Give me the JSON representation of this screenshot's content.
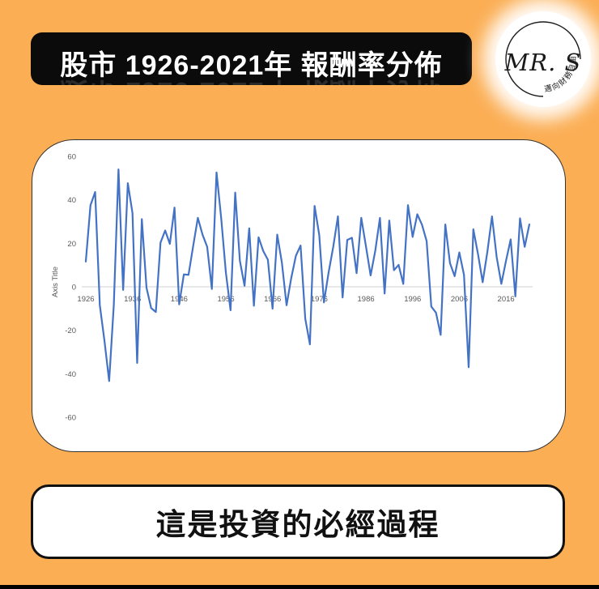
{
  "theme": {
    "background_color": "#FBAE54",
    "banner_bg": "#0B0B0B",
    "banner_text_color": "#FFFFFF",
    "card_bg": "#FFFFFF",
    "card_border_color": "#333333",
    "caption_border_color": "#111111",
    "bottom_bar_color": "#000000"
  },
  "header": {
    "title": "股市 1926-2021年 報酬率分佈"
  },
  "logo": {
    "name": "MR. S",
    "tagline": "邁向財務自由"
  },
  "caption": {
    "text": "這是投資的必經過程"
  },
  "chart_data": {
    "type": "line",
    "title": "",
    "xlabel": "",
    "ylabel": "Axis Title",
    "line_color": "#4472C4",
    "axis_label_color": "#595959",
    "gridline_color": "#D9D9D9",
    "ylim": [
      -60,
      60
    ],
    "yticks": [
      60,
      40,
      20,
      0,
      -20,
      -40,
      -60
    ],
    "xticks": [
      1926,
      1936,
      1946,
      1956,
      1966,
      1976,
      1986,
      1996,
      2006,
      2016
    ],
    "x_range": [
      1926,
      2021
    ],
    "grid": "zero-line-only",
    "legend": "none",
    "values": [
      11.62,
      37.49,
      43.61,
      -8.42,
      -24.9,
      -43.34,
      -8.19,
      53.99,
      -1.44,
      47.67,
      33.92,
      -35.03,
      31.12,
      -0.41,
      -9.78,
      -11.59,
      20.34,
      25.9,
      19.75,
      36.44,
      -8.07,
      5.71,
      5.5,
      18.79,
      31.71,
      24.02,
      18.37,
      -0.99,
      52.62,
      31.56,
      6.56,
      -10.78,
      43.36,
      11.96,
      0.47,
      26.89,
      -8.73,
      22.8,
      16.48,
      12.45,
      -10.06,
      23.98,
      11.06,
      -8.5,
      4.01,
      14.31,
      18.98,
      -14.66,
      -26.47,
      37.2,
      23.84,
      -7.18,
      6.56,
      18.44,
      32.42,
      -4.91,
      21.55,
      22.56,
      6.27,
      31.73,
      18.67,
      5.25,
      16.61,
      31.69,
      -3.1,
      30.47,
      7.62,
      10.08,
      1.32,
      37.58,
      22.96,
      33.36,
      28.58,
      21.04,
      -9.1,
      -11.89,
      -22.1,
      28.68,
      10.88,
      4.91,
      15.79,
      5.49,
      -37.0,
      26.46,
      15.06,
      2.11,
      16.0,
      32.39,
      13.69,
      1.38,
      11.96,
      21.83,
      -4.38,
      31.49,
      18.4,
      28.71
    ]
  }
}
